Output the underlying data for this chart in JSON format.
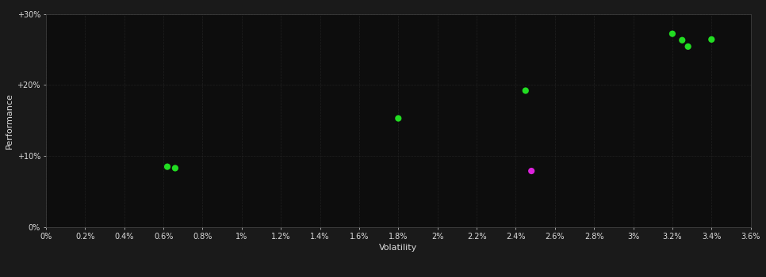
{
  "background_color": "#1a1a1a",
  "plot_bg_color": "#0d0d0d",
  "grid_color": "#333333",
  "text_color": "#dddddd",
  "xlabel": "Volatility",
  "ylabel": "Performance",
  "xlim": [
    0.0,
    0.036
  ],
  "ylim": [
    0.0,
    0.3
  ],
  "xtick_vals": [
    0.0,
    0.002,
    0.004,
    0.006,
    0.008,
    0.01,
    0.012,
    0.014,
    0.016,
    0.018,
    0.02,
    0.022,
    0.024,
    0.026,
    0.028,
    0.03,
    0.032,
    0.034,
    0.036
  ],
  "ytick_vals": [
    0.0,
    0.1,
    0.2,
    0.3
  ],
  "ytick_labels": [
    "0%",
    "+10%",
    "+20%",
    "+30%"
  ],
  "scatter_green": [
    [
      0.0062,
      0.085
    ],
    [
      0.0066,
      0.083
    ],
    [
      0.018,
      0.153
    ],
    [
      0.0245,
      0.192
    ],
    [
      0.032,
      0.272
    ],
    [
      0.0325,
      0.263
    ],
    [
      0.0328,
      0.254
    ],
    [
      0.034,
      0.264
    ]
  ],
  "scatter_magenta": [
    [
      0.0248,
      0.079
    ]
  ],
  "green_color": "#22dd22",
  "magenta_color": "#dd22dd",
  "marker_size": 35,
  "grid_linestyle": "--",
  "grid_linewidth": 0.5,
  "grid_alpha": 0.5
}
